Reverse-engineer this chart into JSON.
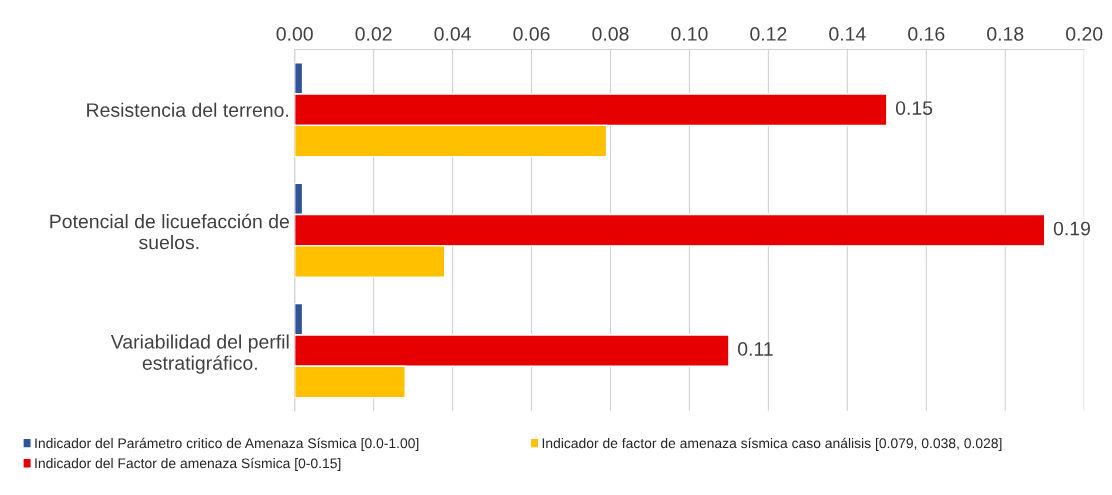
{
  "chart_data": {
    "type": "bar",
    "orientation": "horizontal",
    "categories": [
      "Resistencia del terreno.",
      "Potencial de licuefacción de suelos.",
      "Variabilidad del perfil estratigráfico."
    ],
    "series": [
      {
        "name": "Indicador del Parámetro critico de Amenaza Sísmica [0.0-1.00]",
        "color": "#2f5597",
        "values": [
          0.002,
          0.002,
          0.002
        ]
      },
      {
        "name": "Indicador del Factor de amenaza Sísmica [0-0.15]",
        "color": "#e60000",
        "values": [
          0.15,
          0.19,
          0.11
        ],
        "value_labels": [
          "0.15",
          "0.19",
          "0.11"
        ]
      },
      {
        "name": "Indicador de factor de amenaza sísmica caso análisis [0.079, 0.038, 0.028]",
        "color": "#ffc000",
        "values": [
          0.079,
          0.038,
          0.028
        ]
      }
    ],
    "xlim": [
      0,
      0.2
    ],
    "xticks": [
      {
        "value": 0,
        "label": "0.00"
      },
      {
        "value": 0.02,
        "label": "0.02"
      },
      {
        "value": 0.04,
        "label": "0.04"
      },
      {
        "value": 0.06,
        "label": "0.06"
      },
      {
        "value": 0.08,
        "label": "0.08"
      },
      {
        "value": 0.1,
        "label": "0.10"
      },
      {
        "value": 0.12,
        "label": "0.12"
      },
      {
        "value": 0.14,
        "label": "0.14"
      },
      {
        "value": 0.16,
        "label": "0.16"
      },
      {
        "value": 0.18,
        "label": "0.18"
      },
      {
        "value": 0.2,
        "label": "0.20"
      }
    ],
    "grid": "x",
    "legend": "bottom"
  }
}
